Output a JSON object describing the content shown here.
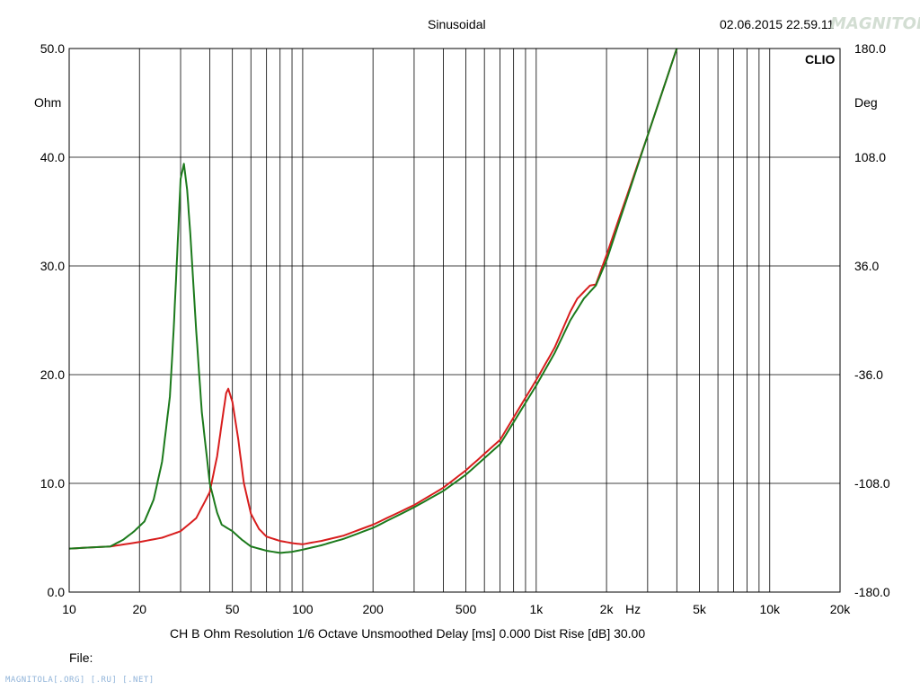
{
  "header": {
    "title": "Sinusoidal",
    "datetime": "02.06.2015 22.59.11",
    "brand": "CLIO"
  },
  "footer": {
    "status_line": "CH B   Ohm   Resolution 1/6 Octave   Unsmoothed   Delay [ms] 0.000   Dist Rise [dB] 30.00",
    "file_label": "File:",
    "watermark": "MAGNITOLA[.ORG] [.RU] [.NET]"
  },
  "logo_text": "MAGNITOLA",
  "colors": {
    "series_1": "#d81e1e",
    "series_2": "#1c7a1c",
    "grid": "#000000",
    "background": "#ffffff"
  },
  "chart_data": {
    "type": "line",
    "title": "Sinusoidal",
    "xlabel": "Hz",
    "ylabel": "Ohm",
    "y2label": "Deg",
    "x_scale": "log",
    "xlim": [
      10,
      20000
    ],
    "ylim": [
      0,
      50
    ],
    "y2lim": [
      -180,
      180
    ],
    "grid": true,
    "x_ticks": [
      10,
      20,
      50,
      100,
      200,
      500,
      1000,
      2000,
      5000,
      10000,
      20000
    ],
    "x_tick_labels": [
      "10",
      "20",
      "50",
      "100",
      "200",
      "500",
      "1k",
      "2k",
      "5k",
      "10k",
      "20k"
    ],
    "y_tick_labels": [
      "0.0",
      "10.0",
      "20.0",
      "30.0",
      "40.0",
      "50.0"
    ],
    "y2_tick_labels": [
      "-180.0",
      "-108.0",
      "-36.0",
      "36.0",
      "108.0",
      "180.0"
    ],
    "series": [
      {
        "color": "#d81e1e",
        "points": [
          [
            10,
            4.0
          ],
          [
            15,
            4.2
          ],
          [
            20,
            4.6
          ],
          [
            25,
            5.0
          ],
          [
            30,
            5.6
          ],
          [
            35,
            6.8
          ],
          [
            40,
            9.2
          ],
          [
            43,
            12.5
          ],
          [
            45,
            15.5
          ],
          [
            47,
            18.3
          ],
          [
            48,
            18.7
          ],
          [
            50,
            17.5
          ],
          [
            53,
            14.0
          ],
          [
            56,
            10.0
          ],
          [
            60,
            7.2
          ],
          [
            65,
            5.8
          ],
          [
            70,
            5.1
          ],
          [
            80,
            4.7
          ],
          [
            90,
            4.5
          ],
          [
            100,
            4.4
          ],
          [
            120,
            4.7
          ],
          [
            150,
            5.2
          ],
          [
            200,
            6.2
          ],
          [
            300,
            8.0
          ],
          [
            400,
            9.6
          ],
          [
            500,
            11.2
          ],
          [
            700,
            14.0
          ],
          [
            1000,
            19.5
          ],
          [
            1200,
            22.5
          ],
          [
            1400,
            25.8
          ],
          [
            1500,
            27.0
          ],
          [
            1700,
            28.2
          ],
          [
            1800,
            28.3
          ],
          [
            2000,
            31.0
          ],
          [
            3000,
            42.0
          ],
          [
            4000,
            50.0
          ]
        ]
      },
      {
        "color": "#1c7a1c",
        "points": [
          [
            10,
            4.0
          ],
          [
            15,
            4.2
          ],
          [
            17,
            4.8
          ],
          [
            19,
            5.6
          ],
          [
            21,
            6.5
          ],
          [
            23,
            8.5
          ],
          [
            25,
            12.0
          ],
          [
            27,
            18.0
          ],
          [
            28,
            24.0
          ],
          [
            29,
            31.0
          ],
          [
            30,
            38.0
          ],
          [
            31,
            39.4
          ],
          [
            32,
            37.0
          ],
          [
            33,
            33.0
          ],
          [
            35,
            24.0
          ],
          [
            37,
            16.5
          ],
          [
            40,
            10.0
          ],
          [
            43,
            7.3
          ],
          [
            45,
            6.2
          ],
          [
            50,
            5.6
          ],
          [
            55,
            4.8
          ],
          [
            60,
            4.2
          ],
          [
            70,
            3.8
          ],
          [
            80,
            3.6
          ],
          [
            90,
            3.7
          ],
          [
            100,
            3.9
          ],
          [
            120,
            4.3
          ],
          [
            150,
            4.9
          ],
          [
            200,
            5.9
          ],
          [
            300,
            7.8
          ],
          [
            400,
            9.3
          ],
          [
            500,
            10.8
          ],
          [
            700,
            13.6
          ],
          [
            1000,
            19.0
          ],
          [
            1200,
            22.0
          ],
          [
            1400,
            25.0
          ],
          [
            1600,
            27.0
          ],
          [
            1800,
            28.2
          ],
          [
            2000,
            30.5
          ],
          [
            3000,
            42.0
          ],
          [
            4000,
            50.0
          ]
        ]
      }
    ]
  }
}
